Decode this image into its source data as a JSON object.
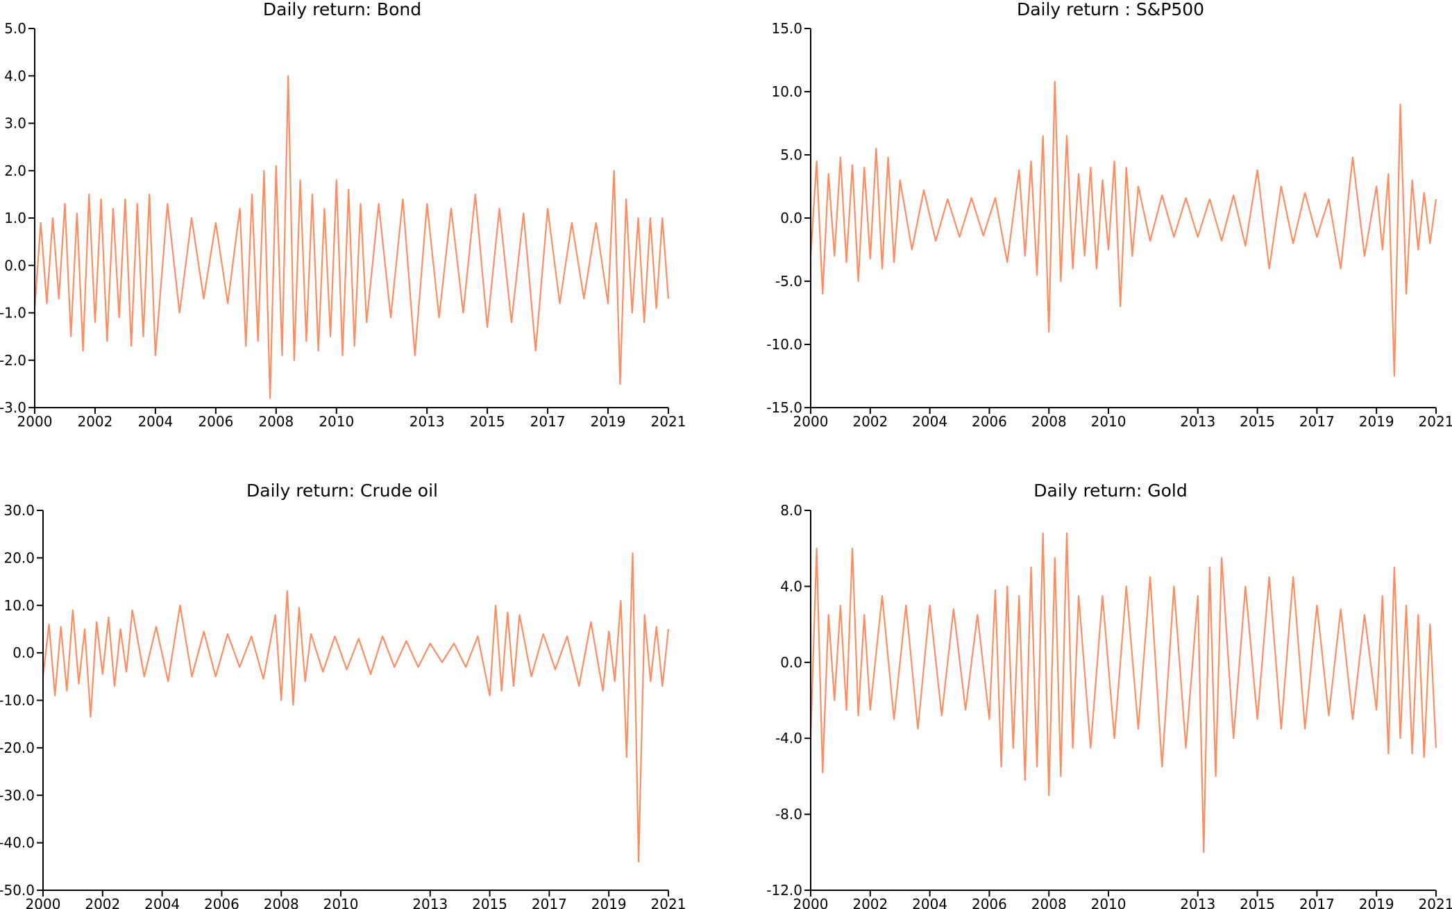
{
  "colors": {
    "series": "#fc8d62",
    "axis": "#000000",
    "background": "#ffffff"
  },
  "chart_data": [
    {
      "type": "line",
      "title": "Daily return: Bond",
      "xlabel": "",
      "ylabel": "",
      "xlim": [
        2000.0,
        2021.0
      ],
      "ylim": [
        -3.0,
        5.0
      ],
      "x_ticks": [
        2000,
        2002,
        2004,
        2006,
        2008,
        2010,
        2013,
        2015,
        2017,
        2019,
        2021
      ],
      "x_tick_labels": [
        "2000",
        "2002",
        "2004",
        "2006",
        "2008",
        "2010",
        "2013",
        "2015",
        "2017",
        "2019",
        "2021"
      ],
      "y_ticks": [
        -3.0,
        -2.0,
        -1.0,
        0.0,
        1.0,
        2.0,
        3.0,
        4.0,
        5.0
      ],
      "y_tick_labels": [
        "-3.0",
        "-2.0",
        "-1.0",
        "0.0",
        "1.0",
        "2.0",
        "3.0",
        "4.0",
        "5.0"
      ],
      "grid": false,
      "series": [
        {
          "x": [
            2000.0,
            2000.2,
            2000.4,
            2000.6,
            2000.8,
            2001.0,
            2001.2,
            2001.4,
            2001.6,
            2001.8,
            2002.0,
            2002.2,
            2002.4,
            2002.6,
            2002.8,
            2003.0,
            2003.2,
            2003.4,
            2003.6,
            2003.8,
            2004.0,
            2004.4,
            2004.8,
            2005.2,
            2005.6,
            2006.0,
            2006.4,
            2006.8,
            2007.0,
            2007.2,
            2007.4,
            2007.6,
            2007.8,
            2008.0,
            2008.2,
            2008.4,
            2008.6,
            2008.8,
            2009.0,
            2009.2,
            2009.4,
            2009.6,
            2009.8,
            2010.0,
            2010.2,
            2010.4,
            2010.6,
            2010.8,
            2011.0,
            2011.4,
            2011.8,
            2012.2,
            2012.6,
            2013.0,
            2013.4,
            2013.8,
            2014.2,
            2014.6,
            2015.0,
            2015.4,
            2015.8,
            2016.2,
            2016.6,
            2017.0,
            2017.4,
            2017.8,
            2018.2,
            2018.6,
            2019.0,
            2019.2,
            2019.4,
            2019.6,
            2019.8,
            2020.0,
            2020.2,
            2020.4,
            2020.6,
            2020.8,
            2021.0
          ],
          "y": [
            -0.9,
            0.9,
            -0.8,
            1.0,
            -0.7,
            1.3,
            -1.5,
            1.1,
            -1.8,
            1.5,
            -1.2,
            1.4,
            -1.6,
            1.2,
            -1.1,
            1.4,
            -1.7,
            1.3,
            -1.5,
            1.5,
            -1.9,
            1.3,
            -1.0,
            1.0,
            -0.7,
            0.9,
            -0.8,
            1.2,
            -1.7,
            1.5,
            -1.6,
            2.0,
            -2.8,
            2.1,
            -1.9,
            4.0,
            -2.0,
            1.8,
            -1.6,
            1.5,
            -1.8,
            1.2,
            -1.5,
            1.8,
            -1.9,
            1.6,
            -1.7,
            1.3,
            -1.2,
            1.3,
            -1.1,
            1.4,
            -1.9,
            1.3,
            -1.1,
            1.2,
            -1.0,
            1.5,
            -1.3,
            1.2,
            -1.2,
            1.1,
            -1.8,
            1.2,
            -0.8,
            0.9,
            -0.7,
            0.9,
            -0.8,
            2.0,
            -2.5,
            1.4,
            -1.0,
            1.0,
            -1.2,
            1.0,
            -0.9,
            1.0,
            -0.7
          ]
        }
      ]
    },
    {
      "type": "line",
      "title": "Daily return : S&P500",
      "xlabel": "",
      "ylabel": "",
      "xlim": [
        2000.0,
        2021.0
      ],
      "ylim": [
        -15.0,
        15.0
      ],
      "x_ticks": [
        2000,
        2002,
        2004,
        2006,
        2008,
        2010,
        2013,
        2015,
        2017,
        2019,
        2021
      ],
      "x_tick_labels": [
        "2000",
        "2002",
        "2004",
        "2006",
        "2008",
        "2010",
        "2013",
        "2015",
        "2017",
        "2019",
        "2021"
      ],
      "y_ticks": [
        -15.0,
        -10.0,
        -5.0,
        0.0,
        5.0,
        10.0,
        15.0
      ],
      "y_tick_labels": [
        "-15.0",
        "-10.0",
        "-5.0",
        "0.0",
        "5.0",
        "10.0",
        "15.0"
      ],
      "grid": false,
      "series": [
        {
          "x": [
            2000.0,
            2000.2,
            2000.4,
            2000.6,
            2000.8,
            2001.0,
            2001.2,
            2001.4,
            2001.6,
            2001.8,
            2002.0,
            2002.2,
            2002.4,
            2002.6,
            2002.8,
            2003.0,
            2003.4,
            2003.8,
            2004.2,
            2004.6,
            2005.0,
            2005.4,
            2005.8,
            2006.2,
            2006.6,
            2007.0,
            2007.2,
            2007.4,
            2007.6,
            2007.8,
            2008.0,
            2008.2,
            2008.4,
            2008.6,
            2008.8,
            2009.0,
            2009.2,
            2009.4,
            2009.6,
            2009.8,
            2010.0,
            2010.2,
            2010.4,
            2010.6,
            2010.8,
            2011.0,
            2011.4,
            2011.8,
            2012.2,
            2012.6,
            2013.0,
            2013.4,
            2013.8,
            2014.2,
            2014.6,
            2015.0,
            2015.4,
            2015.8,
            2016.2,
            2016.6,
            2017.0,
            2017.4,
            2017.8,
            2018.2,
            2018.6,
            2019.0,
            2019.2,
            2019.4,
            2019.6,
            2019.8,
            2020.0,
            2020.2,
            2020.4,
            2020.6,
            2020.8,
            2021.0
          ],
          "y": [
            -3.0,
            4.5,
            -6.0,
            3.5,
            -3.0,
            4.8,
            -3.5,
            4.2,
            -5.0,
            4.0,
            -3.2,
            5.5,
            -4.0,
            4.8,
            -3.5,
            3.0,
            -2.5,
            2.2,
            -1.8,
            1.5,
            -1.5,
            1.6,
            -1.4,
            1.6,
            -3.5,
            3.8,
            -3.0,
            4.5,
            -4.5,
            6.5,
            -9.0,
            10.8,
            -5.0,
            6.5,
            -4.0,
            3.5,
            -3.0,
            4.0,
            -4.0,
            3.0,
            -2.5,
            4.5,
            -7.0,
            4.0,
            -3.0,
            2.5,
            -1.8,
            1.8,
            -1.5,
            1.6,
            -1.5,
            1.5,
            -1.8,
            1.8,
            -2.2,
            3.8,
            -4.0,
            2.5,
            -2.0,
            2.0,
            -1.5,
            1.5,
            -4.0,
            4.8,
            -3.0,
            2.5,
            -2.5,
            3.5,
            -12.5,
            9.0,
            -6.0,
            3.0,
            -2.5,
            2.0,
            -2.0,
            1.5
          ]
        }
      ]
    },
    {
      "type": "line",
      "title": "Daily return: Crude oil",
      "xlabel": "",
      "ylabel": "",
      "xlim": [
        2000.0,
        2021.0
      ],
      "ylim": [
        -50.0,
        30.0
      ],
      "x_ticks": [
        2000,
        2002,
        2004,
        2006,
        2008,
        2010,
        2013,
        2015,
        2017,
        2019,
        2021
      ],
      "x_tick_labels": [
        "2000",
        "2002",
        "2004",
        "2006",
        "2008",
        "2010",
        "2013",
        "2015",
        "2017",
        "2019",
        "2021"
      ],
      "y_ticks": [
        -50.0,
        -40.0,
        -30.0,
        -20.0,
        -10.0,
        0.0,
        10.0,
        20.0,
        30.0
      ],
      "y_tick_labels": [
        "-50.0",
        "-40.0",
        "-30.0",
        "-20.0",
        "-10.0",
        "0.0",
        "10.0",
        "20.0",
        "30.0"
      ],
      "grid": false,
      "series": [
        {
          "x": [
            2000.0,
            2000.2,
            2000.4,
            2000.6,
            2000.8,
            2001.0,
            2001.2,
            2001.4,
            2001.6,
            2001.8,
            2002.0,
            2002.2,
            2002.4,
            2002.6,
            2002.8,
            2003.0,
            2003.4,
            2003.8,
            2004.2,
            2004.6,
            2005.0,
            2005.4,
            2005.8,
            2006.2,
            2006.6,
            2007.0,
            2007.4,
            2007.8,
            2008.0,
            2008.2,
            2008.4,
            2008.6,
            2008.8,
            2009.0,
            2009.4,
            2009.8,
            2010.2,
            2010.6,
            2011.0,
            2011.4,
            2011.8,
            2012.2,
            2012.6,
            2013.0,
            2013.4,
            2013.8,
            2014.2,
            2014.6,
            2015.0,
            2015.2,
            2015.4,
            2015.6,
            2015.8,
            2016.0,
            2016.4,
            2016.8,
            2017.2,
            2017.6,
            2018.0,
            2018.4,
            2018.8,
            2019.0,
            2019.2,
            2019.4,
            2019.6,
            2019.8,
            2020.0,
            2020.2,
            2020.4,
            2020.6,
            2020.8,
            2021.0
          ],
          "y": [
            -5.0,
            6.0,
            -9.0,
            5.5,
            -8.0,
            9.0,
            -6.5,
            5.0,
            -13.5,
            6.5,
            -4.5,
            7.5,
            -7.0,
            5.0,
            -4.0,
            9.0,
            -5.0,
            5.5,
            -6.0,
            10.0,
            -5.0,
            4.5,
            -5.0,
            4.0,
            -3.0,
            3.5,
            -5.5,
            8.0,
            -10.0,
            13.0,
            -11.0,
            9.5,
            -6.0,
            4.0,
            -4.0,
            3.5,
            -3.5,
            3.0,
            -4.5,
            3.5,
            -3.0,
            2.5,
            -3.0,
            2.0,
            -2.0,
            2.0,
            -3.0,
            3.5,
            -9.0,
            10.0,
            -8.0,
            8.5,
            -7.0,
            8.0,
            -5.0,
            4.0,
            -3.5,
            3.5,
            -7.0,
            6.5,
            -8.0,
            4.5,
            -6.0,
            11.0,
            -22.0,
            21.0,
            -44.0,
            8.0,
            -6.0,
            5.5,
            -7.0,
            5.0
          ]
        }
      ]
    },
    {
      "type": "line",
      "title": "Daily return: Gold",
      "xlabel": "",
      "ylabel": "",
      "xlim": [
        2000.0,
        2021.0
      ],
      "ylim": [
        -12.0,
        8.0
      ],
      "x_ticks": [
        2000,
        2002,
        2004,
        2006,
        2008,
        2010,
        2013,
        2015,
        2017,
        2019,
        2021
      ],
      "x_tick_labels": [
        "2000",
        "2002",
        "2004",
        "2006",
        "2008",
        "2010",
        "2013",
        "2015",
        "2017",
        "2019",
        "2021"
      ],
      "y_ticks": [
        -12.0,
        -8.0,
        -4.0,
        0.0,
        4.0,
        8.0
      ],
      "y_tick_labels": [
        "-12.0",
        "-8.0",
        "-4.0",
        "0.0",
        "4.0",
        "8.0"
      ],
      "grid": false,
      "series": [
        {
          "x": [
            2000.0,
            2000.2,
            2000.4,
            2000.6,
            2000.8,
            2001.0,
            2001.2,
            2001.4,
            2001.6,
            2001.8,
            2002.0,
            2002.4,
            2002.8,
            2003.2,
            2003.6,
            2004.0,
            2004.4,
            2004.8,
            2005.2,
            2005.6,
            2006.0,
            2006.2,
            2006.4,
            2006.6,
            2006.8,
            2007.0,
            2007.2,
            2007.4,
            2007.6,
            2007.8,
            2008.0,
            2008.2,
            2008.4,
            2008.6,
            2008.8,
            2009.0,
            2009.4,
            2009.8,
            2010.2,
            2010.6,
            2011.0,
            2011.4,
            2011.8,
            2012.2,
            2012.6,
            2013.0,
            2013.2,
            2013.4,
            2013.6,
            2013.8,
            2014.2,
            2014.6,
            2015.0,
            2015.4,
            2015.8,
            2016.2,
            2016.6,
            2017.0,
            2017.4,
            2017.8,
            2018.2,
            2018.6,
            2019.0,
            2019.2,
            2019.4,
            2019.6,
            2019.8,
            2020.0,
            2020.2,
            2020.4,
            2020.6,
            2020.8,
            2021.0
          ],
          "y": [
            -4.0,
            6.0,
            -5.8,
            2.5,
            -2.0,
            3.0,
            -2.5,
            6.0,
            -2.8,
            2.5,
            -2.5,
            3.5,
            -3.0,
            3.0,
            -3.5,
            3.0,
            -2.8,
            2.8,
            -2.5,
            2.5,
            -3.0,
            3.8,
            -5.5,
            4.0,
            -4.5,
            3.5,
            -6.2,
            5.0,
            -5.5,
            6.8,
            -7.0,
            5.5,
            -6.0,
            6.8,
            -4.5,
            3.5,
            -4.5,
            3.5,
            -4.0,
            4.0,
            -3.5,
            4.5,
            -5.5,
            4.0,
            -4.5,
            3.5,
            -10.0,
            5.0,
            -6.0,
            5.5,
            -4.0,
            4.0,
            -3.0,
            4.5,
            -3.5,
            4.5,
            -3.5,
            3.0,
            -2.8,
            2.8,
            -3.0,
            2.5,
            -2.5,
            3.5,
            -4.8,
            5.0,
            -4.0,
            3.0,
            -4.8,
            2.5,
            -5.0,
            2.0,
            -4.5
          ]
        }
      ]
    }
  ]
}
